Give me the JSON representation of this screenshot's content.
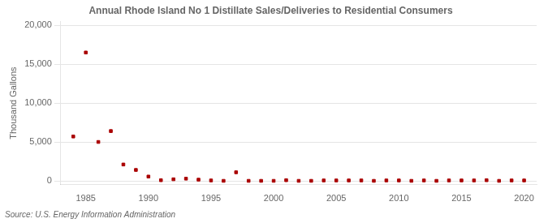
{
  "chart_data": {
    "type": "scatter",
    "title": "Annual Rhode Island No 1 Distillate Sales/Deliveries to Residential Consumers",
    "ylabel": "Thousand Gallons",
    "source": "Source: U.S. Energy Information Administration",
    "color": "#aa0000",
    "marker": "square",
    "grid": "y",
    "xlim": [
      1983,
      2021
    ],
    "ylim": [
      -500,
      20500
    ],
    "xticks": [
      1985,
      1990,
      1995,
      2000,
      2005,
      2010,
      2015,
      2020
    ],
    "yticks": [
      0,
      {
        "value": 5000,
        "label": "5,000"
      },
      {
        "value": 10000,
        "label": "10,000"
      },
      {
        "value": 15000,
        "label": "15,000"
      },
      {
        "value": 20000,
        "label": "20,000"
      }
    ],
    "x": [
      1984,
      1985,
      1986,
      1987,
      1988,
      1989,
      1990,
      1991,
      1992,
      1993,
      1994,
      1995,
      1996,
      1997,
      1998,
      1999,
      2000,
      2001,
      2002,
      2003,
      2004,
      2005,
      2006,
      2007,
      2008,
      2009,
      2010,
      2011,
      2012,
      2013,
      2014,
      2015,
      2016,
      2017,
      2018,
      2019,
      2020
    ],
    "values": [
      5700,
      16500,
      5000,
      6400,
      2100,
      1400,
      550,
      80,
      200,
      280,
      150,
      50,
      0,
      1100,
      0,
      0,
      0,
      80,
      0,
      0,
      50,
      50,
      50,
      50,
      0,
      50,
      50,
      0,
      50,
      0,
      50,
      50,
      50,
      80,
      0,
      50,
      50
    ]
  }
}
